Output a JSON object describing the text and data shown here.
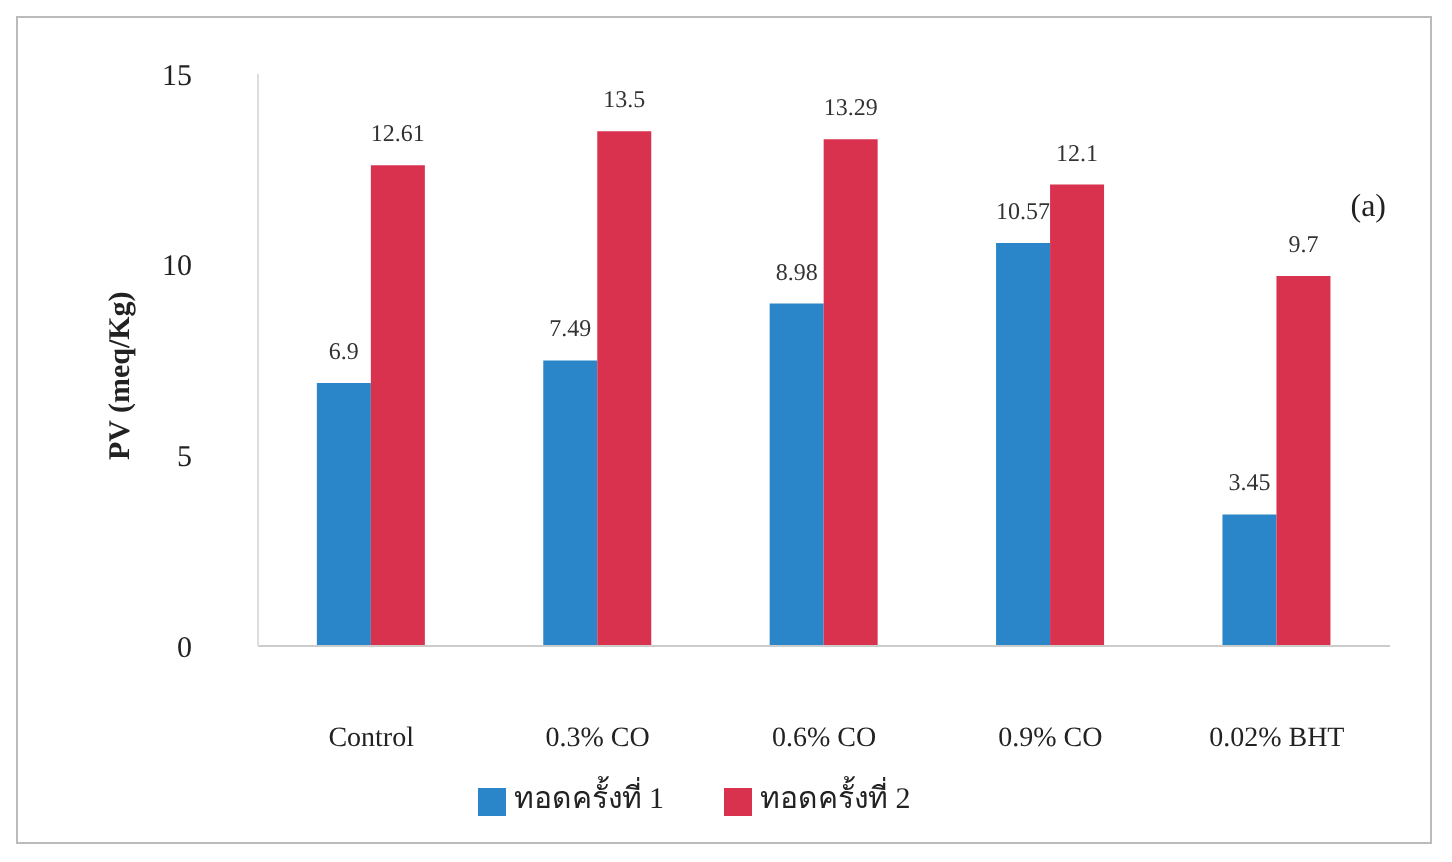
{
  "chart_data": {
    "type": "bar",
    "ylabel": "PV (meq/Kg)",
    "categories": [
      "Control",
      "0.3% CO",
      "0.6% CO",
      "0.9% CO",
      "0.02% BHT"
    ],
    "series": [
      {
        "name": "ทอดครั้งที่ 1",
        "color": "#2a86c8",
        "values": [
          6.9,
          7.49,
          8.98,
          10.57,
          3.45
        ]
      },
      {
        "name": "ทอดครั้งที่ 2",
        "color": "#d8324f",
        "values": [
          12.61,
          13.5,
          13.29,
          12.1,
          9.7
        ]
      }
    ],
    "ylim": [
      0,
      15
    ],
    "yticks": [
      0,
      5,
      10,
      15
    ],
    "grid": false,
    "legend": "bottom",
    "data_labels": true,
    "annotations": [
      "(a)"
    ]
  }
}
